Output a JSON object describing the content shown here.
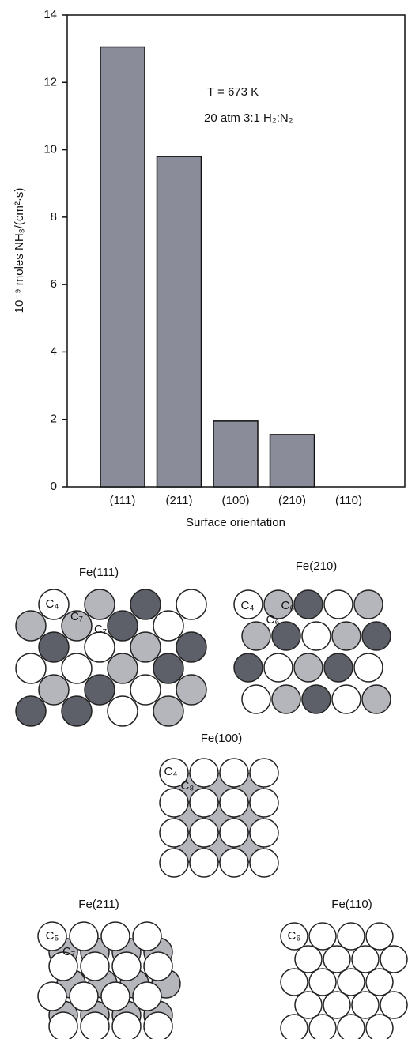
{
  "chart_data": {
    "type": "bar",
    "y_label": "10⁻⁹ moles NH₃/(cm²·s)",
    "x_label": "Surface orientation",
    "annotations": [
      "T = 673 K",
      "20 atm 3:1 H₂:N₂"
    ],
    "categories": [
      "(111)",
      "(211)",
      "(100)",
      "(210)",
      "(110)"
    ],
    "values": [
      13.05,
      9.8,
      1.95,
      1.55,
      0
    ],
    "color": "#8a8d99",
    "ylim": [
      0,
      14
    ],
    "yticks": [
      0,
      2,
      4,
      6,
      8,
      10,
      12,
      14
    ],
    "grid": false
  },
  "diagrams": [
    {
      "title": "Fe(111)",
      "atom_labels": [
        "C₄",
        "C₇",
        "C₇"
      ]
    },
    {
      "title": "Fe(210)",
      "atom_labels": [
        "C₄",
        "C₆",
        "C₆"
      ]
    },
    {
      "title": "Fe(100)",
      "atom_labels": [
        "C₄",
        "C₈"
      ]
    },
    {
      "title": "Fe(211)",
      "atom_labels": [
        "C₅",
        "C₇"
      ]
    },
    {
      "title": "Fe(110)",
      "atom_labels": [
        "C₆"
      ]
    }
  ]
}
